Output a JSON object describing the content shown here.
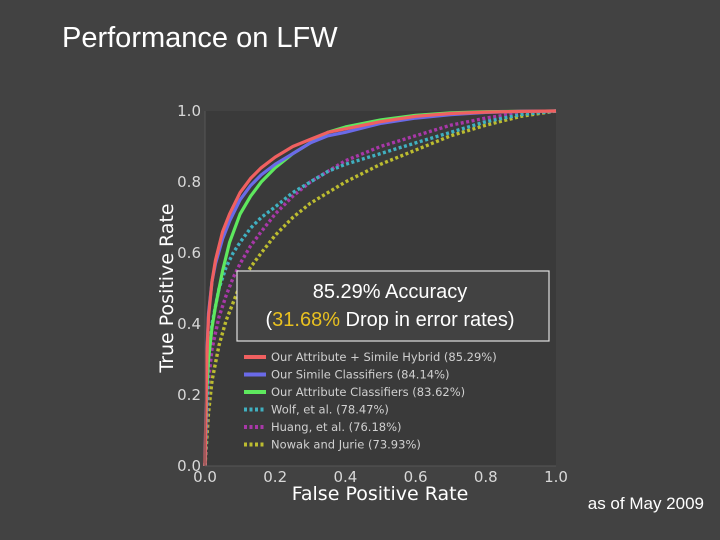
{
  "slide": {
    "title": "Performance on LFW",
    "footnote": "as of May 2009"
  },
  "callout": {
    "line1": "85.29% Accuracy",
    "line2_open": "(",
    "line2_highlight": "31.68%",
    "line2_rest": " Drop in error rates)",
    "highlight_color": "#e8c020"
  },
  "chart_data": {
    "type": "line",
    "title": "",
    "xlabel": "False Positive Rate",
    "ylabel": "True Positive Rate",
    "xlim": [
      0.0,
      1.0
    ],
    "ylim": [
      0.0,
      1.0
    ],
    "xticks": [
      "0.0",
      "0.2",
      "0.4",
      "0.6",
      "0.8",
      "1.0"
    ],
    "yticks": [
      "0.0",
      "0.2",
      "0.4",
      "0.6",
      "0.8",
      "1.0"
    ],
    "grid": false,
    "legend_position": "lower-right",
    "series": [
      {
        "name": "Our Attribute + Simile Hybrid (85.29%)",
        "color": "#f06060",
        "dash": "solid",
        "x": [
          0,
          0.005,
          0.01,
          0.02,
          0.03,
          0.05,
          0.07,
          0.1,
          0.13,
          0.16,
          0.2,
          0.25,
          0.3,
          0.35,
          0.4,
          0.5,
          0.6,
          0.7,
          0.8,
          0.9,
          1.0
        ],
        "y": [
          0,
          0.3,
          0.42,
          0.52,
          0.58,
          0.66,
          0.71,
          0.77,
          0.81,
          0.84,
          0.87,
          0.9,
          0.92,
          0.94,
          0.95,
          0.97,
          0.985,
          0.993,
          0.997,
          0.999,
          1.0
        ]
      },
      {
        "name": "Our Simile Classifiers (84.14%)",
        "color": "#6a6ae8",
        "dash": "solid",
        "x": [
          0,
          0.005,
          0.01,
          0.02,
          0.03,
          0.05,
          0.07,
          0.1,
          0.13,
          0.16,
          0.2,
          0.25,
          0.3,
          0.35,
          0.4,
          0.5,
          0.6,
          0.7,
          0.8,
          0.9,
          1.0
        ],
        "y": [
          0,
          0.31,
          0.43,
          0.52,
          0.57,
          0.64,
          0.69,
          0.75,
          0.79,
          0.82,
          0.85,
          0.88,
          0.91,
          0.93,
          0.94,
          0.965,
          0.98,
          0.99,
          0.996,
          0.999,
          1.0
        ]
      },
      {
        "name": "Our Attribute Classifiers (83.62%)",
        "color": "#5ee85e",
        "dash": "solid",
        "x": [
          0,
          0.005,
          0.01,
          0.02,
          0.03,
          0.05,
          0.07,
          0.1,
          0.13,
          0.16,
          0.2,
          0.25,
          0.3,
          0.35,
          0.4,
          0.5,
          0.6,
          0.7,
          0.8,
          0.9,
          1.0
        ],
        "y": [
          0,
          0.22,
          0.3,
          0.39,
          0.45,
          0.55,
          0.63,
          0.71,
          0.76,
          0.8,
          0.84,
          0.88,
          0.91,
          0.94,
          0.955,
          0.975,
          0.988,
          0.995,
          0.998,
          0.999,
          1.0
        ]
      },
      {
        "name": "Wolf, et al. (78.47%)",
        "color": "#40b0c0",
        "dash": "dotted",
        "x": [
          0,
          0.01,
          0.02,
          0.04,
          0.06,
          0.08,
          0.1,
          0.13,
          0.16,
          0.2,
          0.25,
          0.3,
          0.35,
          0.4,
          0.5,
          0.6,
          0.7,
          0.8,
          0.9,
          1.0
        ],
        "y": [
          0,
          0.3,
          0.4,
          0.5,
          0.56,
          0.6,
          0.63,
          0.67,
          0.7,
          0.73,
          0.77,
          0.8,
          0.83,
          0.85,
          0.88,
          0.91,
          0.94,
          0.97,
          0.99,
          1.0
        ]
      },
      {
        "name": "Huang, et al. (76.18%)",
        "color": "#a838a8",
        "dash": "dotted",
        "x": [
          0,
          0.01,
          0.02,
          0.04,
          0.06,
          0.08,
          0.1,
          0.13,
          0.16,
          0.2,
          0.25,
          0.3,
          0.35,
          0.4,
          0.5,
          0.6,
          0.7,
          0.8,
          0.9,
          1.0
        ],
        "y": [
          0,
          0.24,
          0.33,
          0.42,
          0.48,
          0.53,
          0.57,
          0.62,
          0.66,
          0.71,
          0.76,
          0.8,
          0.83,
          0.86,
          0.9,
          0.93,
          0.96,
          0.98,
          0.995,
          1.0
        ]
      },
      {
        "name": "Nowak and Jurie (73.93%)",
        "color": "#bcbc30",
        "dash": "dotted",
        "x": [
          0,
          0.01,
          0.02,
          0.04,
          0.06,
          0.08,
          0.1,
          0.13,
          0.16,
          0.2,
          0.25,
          0.3,
          0.35,
          0.4,
          0.5,
          0.6,
          0.7,
          0.8,
          0.9,
          1.0
        ],
        "y": [
          0,
          0.15,
          0.24,
          0.34,
          0.41,
          0.46,
          0.51,
          0.56,
          0.6,
          0.65,
          0.7,
          0.74,
          0.77,
          0.8,
          0.85,
          0.89,
          0.93,
          0.96,
          0.985,
          1.0
        ]
      }
    ]
  }
}
